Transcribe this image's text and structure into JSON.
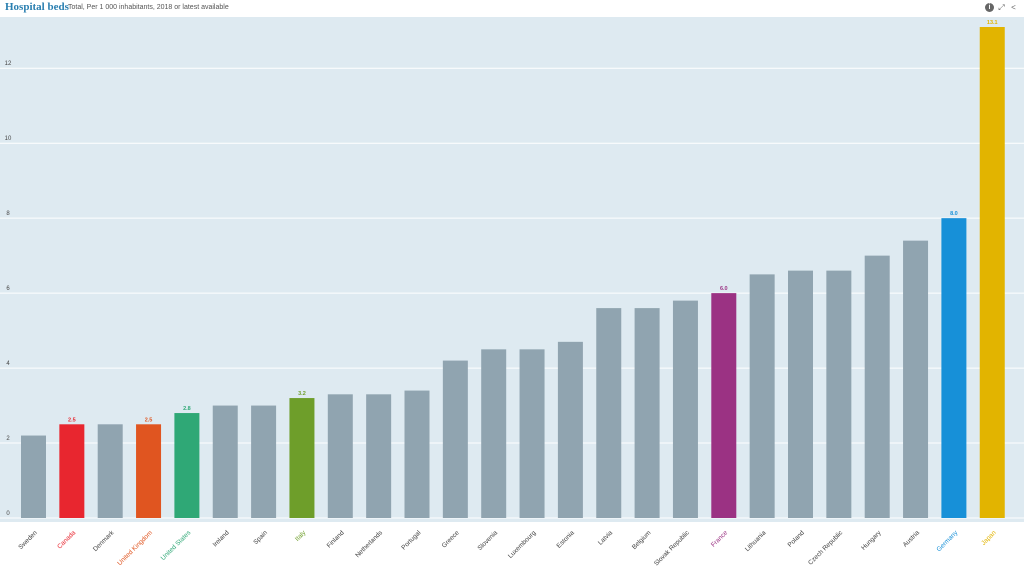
{
  "header": {
    "title": "Hospital beds",
    "subtitle": "Total, Per 1 000 inhabitants, 2018 or latest available",
    "icons": [
      "info-icon",
      "fullscreen-icon",
      "share-icon"
    ]
  },
  "colors": {
    "plot_background": "#deeaf1",
    "default_bar": "#90a4b0",
    "Canada": "#e8262f",
    "United Kingdom": "#e05520",
    "United States": "#2fa876",
    "Italy": "#6e9e2a",
    "France": "#9b3283",
    "Germany": "#1790d8",
    "Japan": "#e2b400"
  },
  "chart_data": {
    "type": "bar",
    "title": "Hospital beds",
    "subtitle": "Total, Per 1 000 inhabitants, 2018 or latest available",
    "xlabel": "",
    "ylabel": "",
    "ylim": [
      0,
      13.2
    ],
    "yticks": [
      0,
      2,
      4,
      6,
      8,
      10,
      12
    ],
    "grid": true,
    "categories": [
      "Sweden",
      "Canada",
      "Denmark",
      "United Kingdom",
      "United States",
      "Ireland",
      "Spain",
      "Italy",
      "Finland",
      "Netherlands",
      "Portugal",
      "Greece",
      "Slovenia",
      "Luxembourg",
      "Estonia",
      "Latvia",
      "Belgium",
      "Slovak Republic",
      "France",
      "Lithuania",
      "Poland",
      "Czech Republic",
      "Hungary",
      "Austria",
      "Germany",
      "Japan"
    ],
    "values": [
      2.2,
      2.5,
      2.5,
      2.5,
      2.8,
      3.0,
      3.0,
      3.2,
      3.3,
      3.3,
      3.4,
      4.2,
      4.5,
      4.5,
      4.7,
      5.6,
      5.6,
      5.8,
      6.0,
      6.5,
      6.6,
      6.6,
      7.0,
      7.4,
      8.0,
      13.1
    ],
    "data_labels": {
      "Canada": "2.5",
      "United Kingdom": "2.5",
      "United States": "2.8",
      "Italy": "3.2",
      "France": "6.0",
      "Germany": "8.0",
      "Japan": "13.1"
    }
  }
}
